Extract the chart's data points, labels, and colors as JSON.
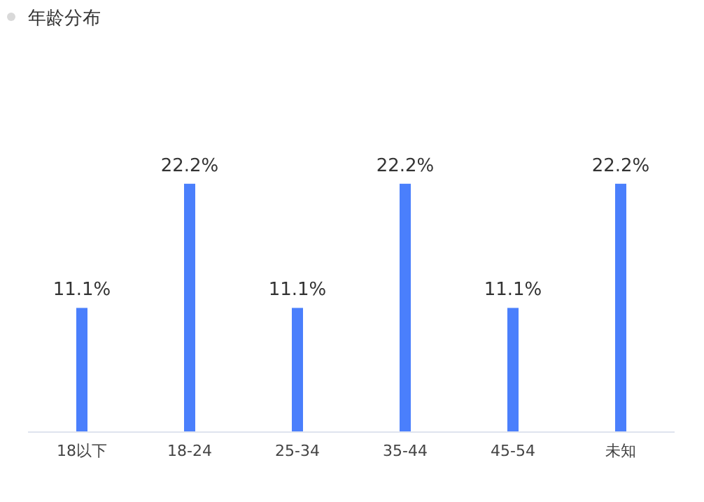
{
  "chart_data": {
    "type": "bar",
    "title": "年龄分布",
    "categories": [
      "18以下",
      "18-24",
      "25-34",
      "35-44",
      "45-54",
      "未知"
    ],
    "values": [
      11.1,
      22.2,
      11.1,
      22.2,
      11.1,
      22.2
    ],
    "value_labels": [
      "11.1%",
      "22.2%",
      "11.1%",
      "22.2%",
      "11.1%",
      "22.2%"
    ],
    "color": "#4a7ffc"
  }
}
